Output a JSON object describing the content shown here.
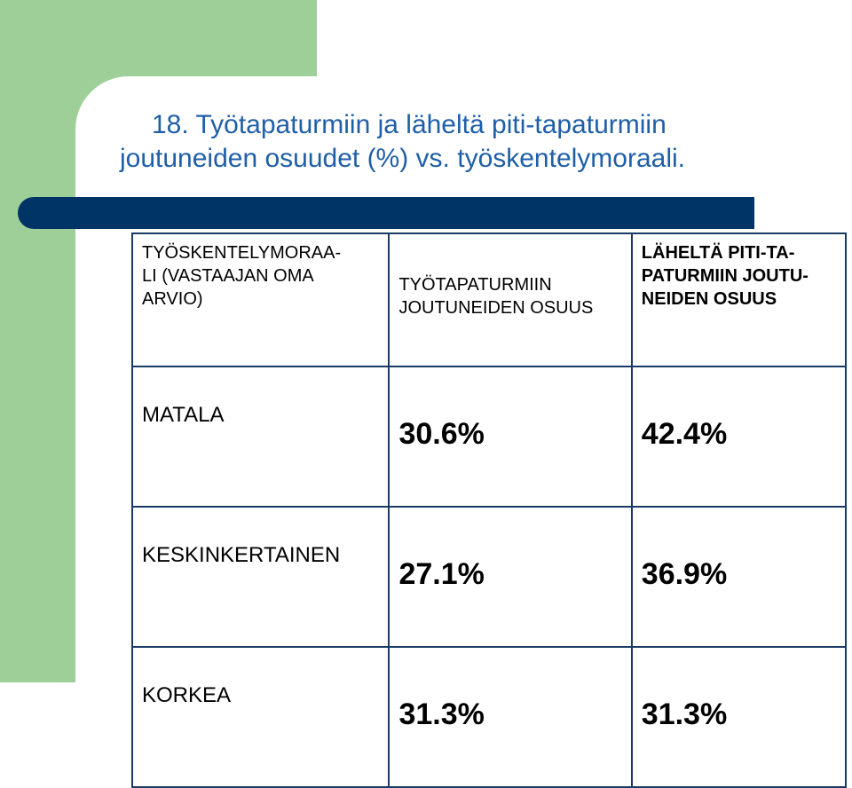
{
  "title": {
    "line1": "18. Työtapaturmiin ja läheltä piti-tapaturmiin",
    "line2": "joutuneiden osuudet (%) vs. työskentelymoraali."
  },
  "colors": {
    "green_block": "#9ecf98",
    "title_text": "#1f5fa8",
    "navy_bar": "#003366",
    "table_border": "#1a3a66"
  },
  "table": {
    "headers": {
      "col1": [
        "TYÖSKENTELYMORAA-",
        "LI (VASTAAJAN OMA",
        "ARVIO)"
      ],
      "col2": [
        "TYÖTAPATURMIIN",
        "JOUTUNEIDEN OSUUS"
      ],
      "col3": [
        "LÄHELTÄ PITI-TA-",
        "PATURMIIN JOUTU-",
        "NEIDEN OSUUS"
      ]
    },
    "rows": [
      {
        "label": "MATALA",
        "work_accidents": "30.6%",
        "near_miss": "42.4%"
      },
      {
        "label": "KESKINKERTAINEN",
        "work_accidents": "27.1%",
        "near_miss": "36.9%"
      },
      {
        "label": "KORKEA",
        "work_accidents": "31.3%",
        "near_miss": "31.3%"
      }
    ]
  }
}
